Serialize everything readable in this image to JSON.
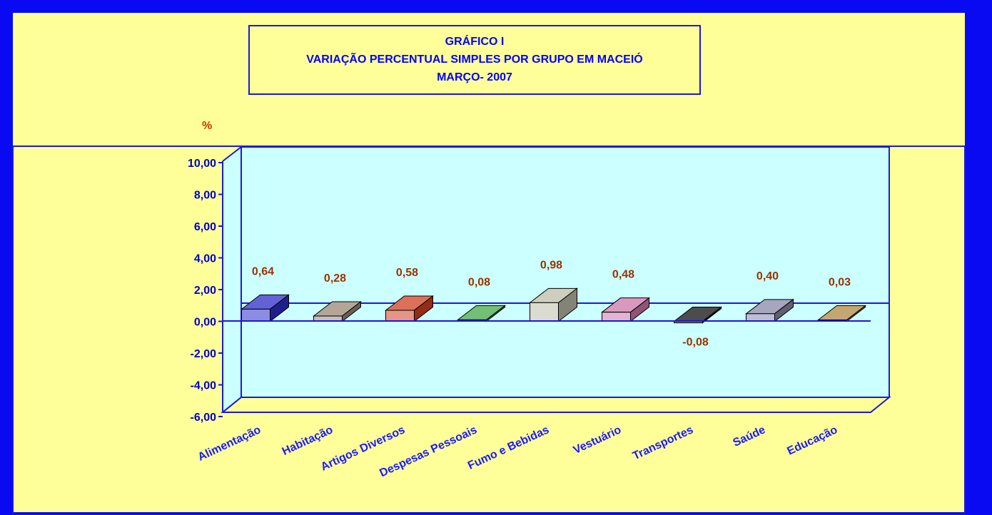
{
  "title": {
    "line1": "GRÁFICO I",
    "line2": "VARIAÇÃO PERCENTUAL SIMPLES POR GRUPO EM MACEIÓ",
    "line3": "MARÇO- 2007"
  },
  "colors": {
    "frame": "#0a0af2",
    "background": "#ffff99",
    "plot_area": "#ccffff",
    "axis": "#0000cc",
    "data_label": "#993300"
  },
  "chart_data": {
    "type": "bar",
    "unit_label": "%",
    "categories": [
      "Alimentação",
      "Habitação",
      "Artigos Diversos",
      "Despesas Pessoais",
      "Fumo e Bebidas",
      "Vestuário",
      "Transportes",
      "Saúde",
      "Educação"
    ],
    "values": [
      0.64,
      0.28,
      0.58,
      0.08,
      0.98,
      0.48,
      -0.08,
      0.4,
      0.03
    ],
    "value_labels": [
      "0,64",
      "0,28",
      "0,58",
      "0,08",
      "0,98",
      "0,48",
      "-0,08",
      "0,40",
      "0,03"
    ],
    "bar_colors": [
      "#2e2ec8",
      "#998877",
      "#d04020",
      "#44aa44",
      "#bdbda8",
      "#cc77aa",
      "#101010",
      "#8888aa",
      "#b08840"
    ],
    "yticks": [
      "10,00",
      "8,00",
      "6,00",
      "4,00",
      "2,00",
      "0,00",
      "-2,00",
      "-4,00",
      "-6,00"
    ],
    "ylim": [
      -6,
      10
    ],
    "grid": false,
    "legend": "none",
    "style": "3d"
  }
}
